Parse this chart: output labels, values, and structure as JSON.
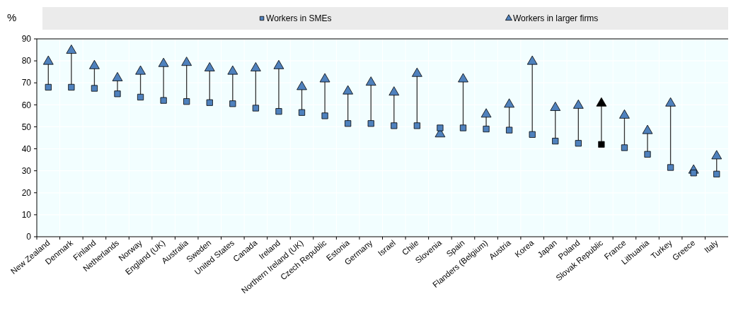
{
  "chart_data": {
    "type": "scatter",
    "ylabel": "%",
    "legend": "top",
    "grid": true,
    "ylim": [
      0,
      90
    ],
    "yticks": [
      0,
      10,
      20,
      30,
      40,
      50,
      60,
      70,
      80,
      90
    ],
    "categories": [
      "New Zealand",
      "Denmark",
      "Finland",
      "Netherlands",
      "Norway",
      "England (UK)",
      "Australia",
      "Sweden",
      "United States",
      "Canada",
      "Ireland",
      "Northern Ireland (UK)",
      "Czech Republic",
      "Estonia",
      "Germany",
      "Israel",
      "Chile",
      "Slovenia",
      "Spain",
      "Flanders (Belgium)",
      "Austria",
      "Korea",
      "Japan",
      "Poland",
      "Slovak Republic",
      "France",
      "Lithuania",
      "Turkey",
      "Greece",
      "Italy"
    ],
    "series": [
      {
        "name": "Workers in SMEs",
        "marker": "square",
        "color": "#4f81bd",
        "colors": [
          "#4f81bd",
          "#4f81bd",
          "#4f81bd",
          "#4f81bd",
          "#4f81bd",
          "#4f81bd",
          "#4f81bd",
          "#4f81bd",
          "#4f81bd",
          "#4f81bd",
          "#4f81bd",
          "#4f81bd",
          "#4f81bd",
          "#4f81bd",
          "#4f81bd",
          "#4f81bd",
          "#4f81bd",
          "#4f81bd",
          "#4f81bd",
          "#4f81bd",
          "#4f81bd",
          "#4f81bd",
          "#4f81bd",
          "#4f81bd",
          "#000000",
          "#4f81bd",
          "#4f81bd",
          "#4f81bd",
          "#4f81bd",
          "#4f81bd"
        ],
        "values": [
          68,
          68,
          67.5,
          65,
          63.5,
          62,
          61.5,
          61,
          60.5,
          58.5,
          57,
          56.5,
          55,
          51.5,
          51.5,
          50.5,
          50.5,
          49.5,
          49.5,
          49,
          48.5,
          46.5,
          43.5,
          42.5,
          42,
          40.5,
          37.5,
          31.5,
          29,
          28.5
        ]
      },
      {
        "name": "Workers in larger firms",
        "marker": "triangle",
        "color": "#4f81bd",
        "colors": [
          "#4f81bd",
          "#4f81bd",
          "#4f81bd",
          "#4f81bd",
          "#4f81bd",
          "#4f81bd",
          "#4f81bd",
          "#4f81bd",
          "#4f81bd",
          "#4f81bd",
          "#4f81bd",
          "#4f81bd",
          "#4f81bd",
          "#4f81bd",
          "#4f81bd",
          "#4f81bd",
          "#4f81bd",
          "#4f81bd",
          "#4f81bd",
          "#4f81bd",
          "#4f81bd",
          "#4f81bd",
          "#4f81bd",
          "#4f81bd",
          "#000000",
          "#4f81bd",
          "#4f81bd",
          "#4f81bd",
          "#4f81bd",
          "#4f81bd"
        ],
        "values": [
          80,
          85,
          78,
          72.5,
          75.5,
          79,
          79.5,
          77,
          75.5,
          77,
          78,
          68.5,
          72,
          66.5,
          70.5,
          66,
          74.5,
          47,
          72,
          56,
          60.5,
          80,
          59,
          60,
          61,
          55.5,
          48.5,
          61,
          30.5,
          37
        ]
      }
    ]
  }
}
